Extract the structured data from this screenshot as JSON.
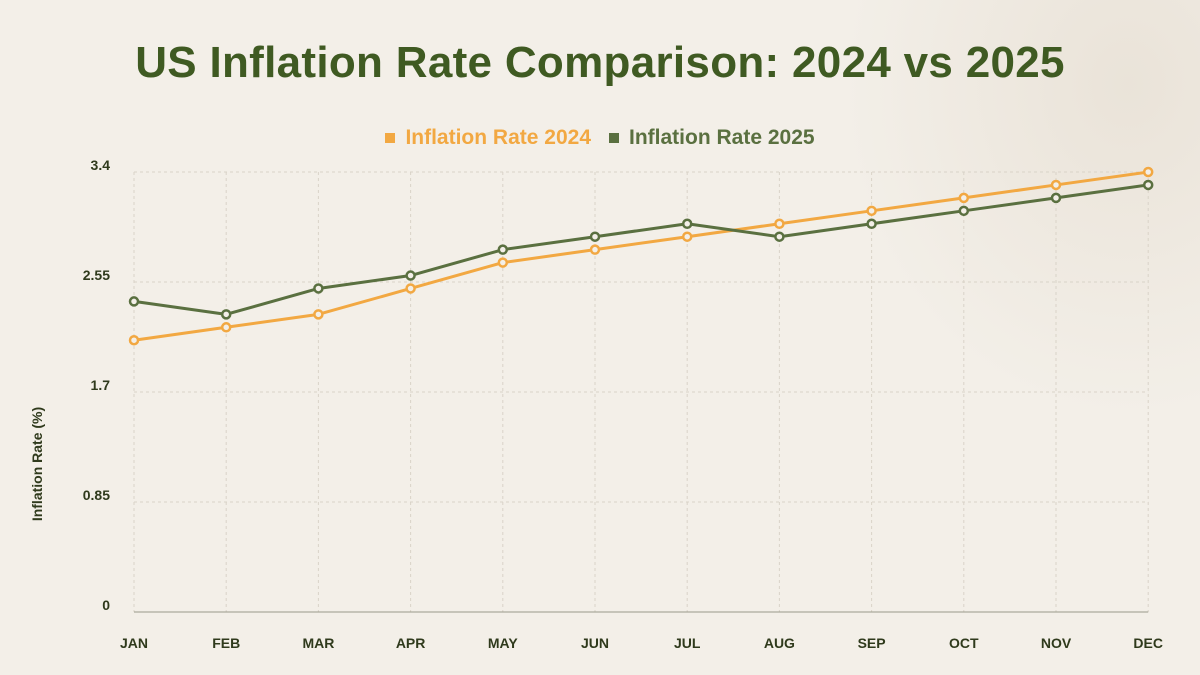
{
  "chart_data": {
    "type": "line",
    "title": "US Inflation Rate Comparison: 2024 vs 2025",
    "xlabel": "",
    "ylabel": "Inflation Rate (%)",
    "categories": [
      "JAN",
      "FEB",
      "MAR",
      "APR",
      "MAY",
      "JUN",
      "JUL",
      "AUG",
      "SEP",
      "OCT",
      "NOV",
      "DEC"
    ],
    "yticks": [
      "0",
      "0.85",
      "1.7",
      "2.55",
      "3.4"
    ],
    "ylim": [
      0,
      3.4
    ],
    "grid": true,
    "legend_position": "top-center",
    "series": [
      {
        "name": "Inflation Rate 2024",
        "color": "#f2a842",
        "values": [
          2.1,
          2.2,
          2.3,
          2.5,
          2.7,
          2.8,
          2.9,
          3.0,
          3.1,
          3.2,
          3.3,
          3.4
        ]
      },
      {
        "name": "Inflation Rate 2025",
        "color": "#5a7040",
        "values": [
          2.4,
          2.3,
          2.5,
          2.6,
          2.8,
          2.9,
          3.0,
          2.9,
          3.0,
          3.1,
          3.2,
          3.3
        ]
      }
    ]
  }
}
